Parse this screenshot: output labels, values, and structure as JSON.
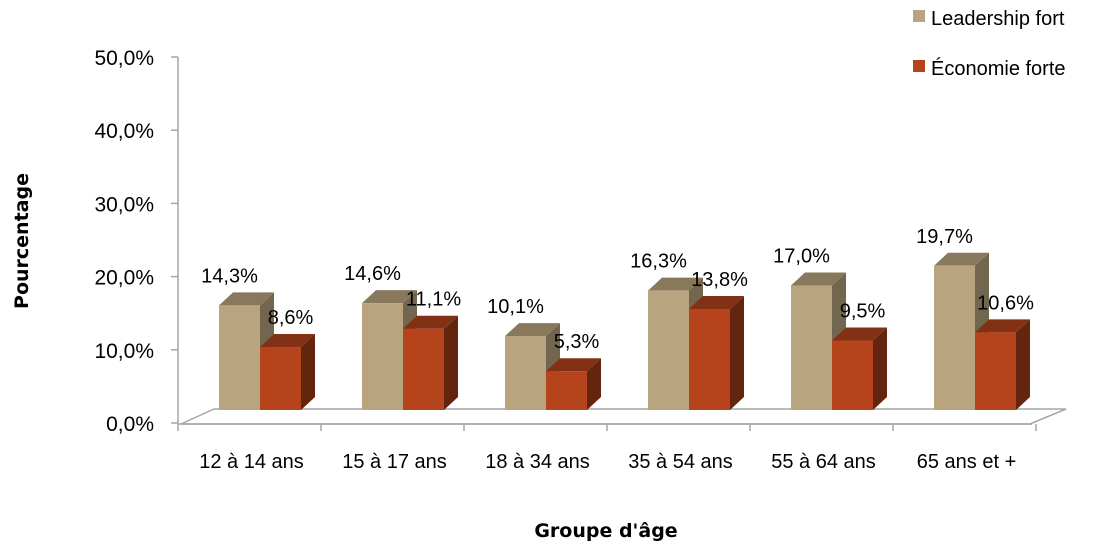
{
  "chart_data": {
    "type": "bar",
    "categories": [
      "12 à 14 ans",
      "15 à 17 ans",
      "18 à 34 ans",
      "35 à 54 ans",
      "55 à 64 ans",
      "65 ans et +"
    ],
    "series": [
      {
        "name": "Leadership fort",
        "values": [
          14.3,
          14.6,
          10.1,
          16.3,
          17.0,
          19.7
        ],
        "labels": [
          "14,3%",
          "14,6%",
          "10,1%",
          "16,3%",
          "17,0%",
          "19,7%"
        ],
        "color": "#b8a47e"
      },
      {
        "name": "Économie forte",
        "values": [
          8.6,
          11.1,
          5.3,
          13.8,
          9.5,
          10.6
        ],
        "labels": [
          "8,6%",
          "11,1%",
          "5,3%",
          "13,8%",
          "9,5%",
          "10,6%"
        ],
        "color": "#b5441c"
      }
    ],
    "xlabel": "Groupe d'âge",
    "ylabel": "Pourcentage",
    "ylim": [
      0,
      50
    ],
    "yticks": [
      0,
      10,
      20,
      30,
      40,
      50
    ],
    "ytick_labels": [
      "0,0%",
      "10,0%",
      "20,0%",
      "30,0%",
      "40,0%",
      "50,0%"
    ],
    "legend_position": "top-right",
    "grid": false,
    "style": "3d-column"
  }
}
